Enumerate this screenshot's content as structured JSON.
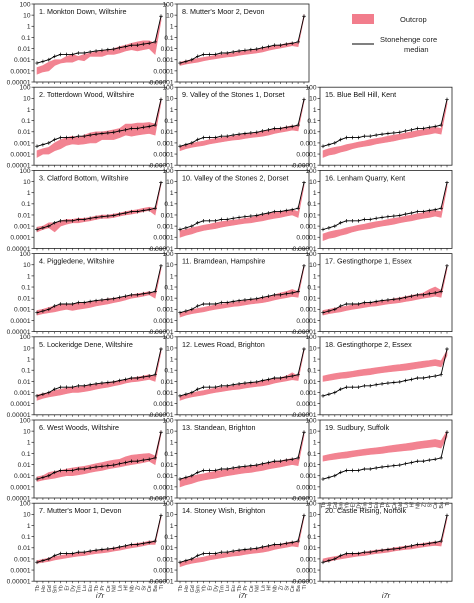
{
  "figure": {
    "legend": {
      "outcrop_label": "Outcrop",
      "median_label_line1": "Stonehenge core",
      "median_label_line2": "median"
    },
    "xlabel": "i7r",
    "colors": {
      "outcrop": "#f27d8c",
      "median": "#000000",
      "frame": "#222222"
    }
  },
  "chart_data": {
    "type": "line",
    "y_scale": "log",
    "ylim": [
      1e-05,
      100
    ],
    "yticks": [
      "100",
      "10",
      "1",
      "0.1",
      "0.01",
      "0.001",
      "0.0001",
      "0.00001"
    ],
    "x_labels": [
      "Tb",
      "Ho",
      "Gd",
      "Sm",
      "Yb",
      "Er",
      "Dy",
      "Tm",
      "Lu",
      "Eu",
      "Tb",
      "Pr",
      "Ce",
      "Nd",
      "La",
      "Hf",
      "Nb",
      "Zr",
      "Sr",
      "Ce",
      "Ba",
      "Ti"
    ],
    "series_median": [
      0.0005,
      0.0007,
      0.001,
      0.002,
      0.003,
      0.003,
      0.003,
      0.004,
      0.004,
      0.005,
      0.006,
      0.007,
      0.008,
      0.009,
      0.012,
      0.015,
      0.02,
      0.02,
      0.025,
      0.03,
      0.04,
      8
    ],
    "panels": [
      {
        "id": 1,
        "title": "1. Monkton Down, Wiltshire",
        "low": [
          5e-05,
          8e-05,
          0.0001,
          0.0003,
          0.0005,
          0.0006,
          0.0006,
          0.001,
          0.0008,
          0.002,
          0.002,
          0.002,
          0.003,
          0.003,
          0.004,
          0.006,
          0.008,
          0.006,
          0.008,
          0.01,
          0.003,
          3
        ],
        "high": [
          0.0002,
          0.0003,
          0.0006,
          0.001,
          0.001,
          0.002,
          0.003,
          0.002,
          0.003,
          0.004,
          0.005,
          0.006,
          0.007,
          0.01,
          0.015,
          0.02,
          0.03,
          0.04,
          0.05,
          0.05,
          0.03,
          8
        ]
      },
      {
        "id": 2,
        "title": "2. Totterdown Wood, Wiltshire",
        "low": [
          5e-05,
          0.0001,
          0.0001,
          0.0002,
          0.0003,
          0.0006,
          0.0008,
          0.0007,
          0.0008,
          0.001,
          0.001,
          0.002,
          0.002,
          0.002,
          0.003,
          0.005,
          0.004,
          0.005,
          0.006,
          0.007,
          0.005,
          4
        ],
        "high": [
          0.0002,
          0.0003,
          0.0004,
          0.001,
          0.002,
          0.003,
          0.004,
          0.003,
          0.005,
          0.008,
          0.01,
          0.01,
          0.012,
          0.015,
          0.02,
          0.05,
          0.05,
          0.06,
          0.06,
          0.07,
          0.05,
          10
        ]
      },
      {
        "id": 3,
        "title": "3. Clatford Bottom, Wiltshire",
        "low": [
          0.0003,
          0.0005,
          0.0007,
          0.0003,
          0.001,
          0.0015,
          0.002,
          0.002,
          0.0025,
          0.003,
          0.004,
          0.005,
          0.005,
          0.006,
          0.008,
          0.01,
          0.012,
          0.015,
          0.02,
          0.025,
          0.01,
          5
        ],
        "high": [
          0.0008,
          0.001,
          0.002,
          0.002,
          0.003,
          0.004,
          0.004,
          0.005,
          0.005,
          0.006,
          0.008,
          0.01,
          0.01,
          0.012,
          0.015,
          0.02,
          0.025,
          0.03,
          0.04,
          0.05,
          0.04,
          10
        ]
      },
      {
        "id": 4,
        "title": "4. Piggledene, Wiltshire",
        "low": [
          0.0003,
          0.0004,
          0.0005,
          0.0006,
          0.0008,
          0.001,
          0.0008,
          0.001,
          0.0012,
          0.0015,
          0.002,
          0.0025,
          0.003,
          0.004,
          0.005,
          0.007,
          0.01,
          0.012,
          0.015,
          0.02,
          0.01,
          4
        ],
        "high": [
          0.0008,
          0.001,
          0.0015,
          0.002,
          0.0025,
          0.003,
          0.003,
          0.004,
          0.004,
          0.005,
          0.006,
          0.007,
          0.009,
          0.01,
          0.012,
          0.015,
          0.02,
          0.025,
          0.03,
          0.04,
          0.03,
          9
        ]
      },
      {
        "id": 5,
        "title": "5. Lockeridge Dene, Wiltshire",
        "low": [
          0.0002,
          0.0003,
          0.0004,
          0.0005,
          0.0006,
          0.0008,
          0.001,
          0.001,
          0.0012,
          0.0015,
          0.002,
          0.0025,
          0.003,
          0.004,
          0.005,
          0.007,
          0.009,
          0.01,
          0.012,
          0.015,
          0.01,
          4
        ],
        "high": [
          0.0006,
          0.0008,
          0.001,
          0.0015,
          0.002,
          0.0025,
          0.003,
          0.003,
          0.004,
          0.005,
          0.006,
          0.007,
          0.008,
          0.01,
          0.012,
          0.015,
          0.02,
          0.025,
          0.03,
          0.04,
          0.03,
          10
        ]
      },
      {
        "id": 6,
        "title": "6. West Woods, Wiltshire",
        "low": [
          0.0003,
          0.0004,
          0.0005,
          0.0006,
          0.0008,
          0.001,
          0.001,
          0.0012,
          0.0015,
          0.002,
          0.0025,
          0.003,
          0.004,
          0.005,
          0.006,
          0.008,
          0.01,
          0.012,
          0.015,
          0.02,
          0.01,
          5
        ],
        "high": [
          0.0008,
          0.001,
          0.002,
          0.0025,
          0.003,
          0.004,
          0.005,
          0.006,
          0.007,
          0.009,
          0.012,
          0.015,
          0.02,
          0.025,
          0.03,
          0.05,
          0.07,
          0.08,
          0.09,
          0.1,
          0.06,
          12
        ]
      },
      {
        "id": 7,
        "title": "7. Mutter's Moor 1, Devon",
        "low": [
          0.0004,
          0.0005,
          0.0006,
          0.0008,
          0.001,
          0.0012,
          0.0015,
          0.0018,
          0.002,
          0.0025,
          0.003,
          0.0035,
          0.004,
          0.005,
          0.006,
          0.008,
          0.01,
          0.012,
          0.015,
          0.02,
          0.02,
          5
        ],
        "high": [
          0.0007,
          0.0009,
          0.0012,
          0.0016,
          0.002,
          0.0025,
          0.003,
          0.0035,
          0.004,
          0.005,
          0.006,
          0.007,
          0.008,
          0.01,
          0.012,
          0.015,
          0.02,
          0.025,
          0.03,
          0.04,
          0.04,
          9
        ]
      },
      {
        "id": 8,
        "title": "8. Mutter's Moor 2, Devon",
        "low": [
          0.0003,
          0.0004,
          0.0005,
          0.0006,
          0.0008,
          0.001,
          0.0012,
          0.0015,
          0.0018,
          0.002,
          0.0025,
          0.003,
          0.0035,
          0.004,
          0.005,
          0.007,
          0.009,
          0.011,
          0.014,
          0.018,
          0.015,
          6
        ],
        "high": [
          0.0006,
          0.0008,
          0.001,
          0.0013,
          0.0016,
          0.002,
          0.0025,
          0.003,
          0.0035,
          0.004,
          0.005,
          0.006,
          0.007,
          0.009,
          0.011,
          0.014,
          0.018,
          0.022,
          0.028,
          0.035,
          0.03,
          12
        ]
      },
      {
        "id": 9,
        "title": "9. Valley of the Stones 1, Dorset",
        "low": [
          0.0002,
          0.0003,
          0.0004,
          0.0005,
          0.0006,
          0.0008,
          0.001,
          0.0012,
          0.0015,
          0.0018,
          0.002,
          0.0025,
          0.003,
          0.0035,
          0.004,
          0.005,
          0.007,
          0.009,
          0.011,
          0.014,
          0.012,
          5
        ],
        "high": [
          0.0005,
          0.0007,
          0.0009,
          0.0012,
          0.0015,
          0.002,
          0.0025,
          0.003,
          0.0035,
          0.004,
          0.005,
          0.006,
          0.007,
          0.009,
          0.011,
          0.014,
          0.018,
          0.022,
          0.028,
          0.035,
          0.03,
          10
        ]
      },
      {
        "id": 10,
        "title": "10. Valley of the Stones 2, Dorset",
        "low": [
          0.0001,
          0.00015,
          0.0002,
          0.0003,
          0.0004,
          0.0005,
          0.0006,
          0.0008,
          0.001,
          0.0012,
          0.0015,
          0.0018,
          0.002,
          0.0025,
          0.003,
          0.004,
          0.005,
          0.006,
          0.008,
          0.01,
          0.006,
          4
        ],
        "high": [
          0.0004,
          0.0005,
          0.0007,
          0.0009,
          0.0012,
          0.0015,
          0.002,
          0.0025,
          0.003,
          0.0035,
          0.004,
          0.005,
          0.006,
          0.008,
          0.01,
          0.013,
          0.017,
          0.02,
          0.025,
          0.03,
          0.02,
          9
        ]
      },
      {
        "id": 11,
        "title": "11. Bramdean, Hampshire",
        "low": [
          0.0002,
          0.0003,
          0.0004,
          0.0005,
          0.0006,
          0.0008,
          0.001,
          0.0012,
          0.0015,
          0.0018,
          0.002,
          0.0025,
          0.003,
          0.0035,
          0.004,
          0.005,
          0.007,
          0.009,
          0.011,
          0.014,
          0.012,
          5
        ],
        "high": [
          0.0005,
          0.0007,
          0.0009,
          0.0012,
          0.0015,
          0.002,
          0.0025,
          0.003,
          0.0035,
          0.004,
          0.005,
          0.006,
          0.007,
          0.009,
          0.011,
          0.014,
          0.02,
          0.03,
          0.04,
          0.06,
          0.04,
          10
        ]
      },
      {
        "id": 12,
        "title": "12. Lewes Road, Brighton",
        "low": [
          0.0002,
          0.0003,
          0.0004,
          0.0005,
          0.0006,
          0.0008,
          0.001,
          0.0012,
          0.0015,
          0.0018,
          0.002,
          0.0025,
          0.003,
          0.0035,
          0.004,
          0.005,
          0.007,
          0.009,
          0.011,
          0.014,
          0.012,
          5
        ],
        "high": [
          0.0005,
          0.0007,
          0.0009,
          0.0012,
          0.0015,
          0.002,
          0.0025,
          0.003,
          0.0035,
          0.004,
          0.005,
          0.006,
          0.007,
          0.009,
          0.011,
          0.014,
          0.018,
          0.022,
          0.03,
          0.06,
          0.03,
          10
        ]
      },
      {
        "id": 13,
        "title": "13. Standean, Brighton",
        "low": [
          0.0001,
          0.00015,
          0.0002,
          0.0003,
          0.0004,
          0.0005,
          0.0006,
          0.0008,
          0.001,
          0.0012,
          0.0015,
          0.0018,
          0.002,
          0.0025,
          0.003,
          0.004,
          0.005,
          0.006,
          0.008,
          0.01,
          0.008,
          4
        ],
        "high": [
          0.0005,
          0.0007,
          0.0009,
          0.0012,
          0.0015,
          0.002,
          0.0025,
          0.003,
          0.0035,
          0.004,
          0.005,
          0.006,
          0.007,
          0.009,
          0.011,
          0.014,
          0.018,
          0.022,
          0.028,
          0.035,
          0.03,
          10
        ]
      },
      {
        "id": 14,
        "title": "14. Stoney Wish, Brighton",
        "low": [
          0.0002,
          0.0003,
          0.0004,
          0.0005,
          0.0006,
          0.0008,
          0.001,
          0.0012,
          0.0015,
          0.0018,
          0.002,
          0.0025,
          0.003,
          0.0035,
          0.004,
          0.005,
          0.007,
          0.009,
          0.011,
          0.014,
          0.012,
          5
        ],
        "high": [
          0.0005,
          0.0007,
          0.0009,
          0.0012,
          0.0015,
          0.002,
          0.0025,
          0.003,
          0.0035,
          0.004,
          0.005,
          0.006,
          0.007,
          0.009,
          0.011,
          0.014,
          0.018,
          0.022,
          0.028,
          0.035,
          0.03,
          10
        ]
      },
      {
        "id": 15,
        "title": "15. Blue Bell Hill, Kent",
        "low": [
          5e-05,
          8e-05,
          0.0001,
          0.00015,
          0.0002,
          0.0003,
          0.0004,
          0.0005,
          0.0006,
          0.0008,
          0.001,
          0.0012,
          0.0015,
          0.002,
          0.0025,
          0.003,
          0.004,
          0.005,
          0.006,
          0.008,
          0.006,
          3
        ],
        "high": [
          0.0002,
          0.0003,
          0.0004,
          0.0005,
          0.0007,
          0.0009,
          0.0012,
          0.0015,
          0.002,
          0.0025,
          0.003,
          0.004,
          0.005,
          0.006,
          0.008,
          0.01,
          0.013,
          0.016,
          0.02,
          0.025,
          0.02,
          8
        ]
      },
      {
        "id": 16,
        "title": "16. Lenham Quarry, Kent",
        "low": [
          5e-05,
          8e-05,
          0.0001,
          0.00015,
          0.0002,
          0.0003,
          0.0004,
          0.0005,
          0.0006,
          0.0008,
          0.001,
          0.0012,
          0.0015,
          0.002,
          0.0025,
          0.003,
          0.004,
          0.005,
          0.006,
          0.008,
          0.006,
          3
        ],
        "high": [
          0.0002,
          0.0003,
          0.0004,
          0.0005,
          0.0007,
          0.0009,
          0.0012,
          0.0015,
          0.002,
          0.0025,
          0.003,
          0.004,
          0.005,
          0.006,
          0.008,
          0.01,
          0.013,
          0.016,
          0.02,
          0.025,
          0.02,
          8
        ]
      },
      {
        "id": 17,
        "title": "17. Gestingthorpe 1, Essex",
        "low": [
          0.0003,
          0.0004,
          0.0005,
          0.0006,
          0.0008,
          0.001,
          0.0012,
          0.0015,
          0.0018,
          0.002,
          0.0025,
          0.003,
          0.0035,
          0.004,
          0.005,
          0.006,
          0.008,
          0.01,
          0.012,
          0.015,
          0.012,
          4
        ],
        "high": [
          0.0008,
          0.001,
          0.0013,
          0.0016,
          0.002,
          0.0025,
          0.003,
          0.0035,
          0.004,
          0.005,
          0.006,
          0.007,
          0.009,
          0.011,
          0.014,
          0.018,
          0.022,
          0.03,
          0.06,
          0.1,
          0.05,
          10
        ]
      },
      {
        "id": 18,
        "title": "18. Gestingthorpe 2, Essex",
        "low": [
          0.01,
          0.012,
          0.015,
          0.018,
          0.02,
          0.025,
          0.03,
          0.035,
          0.04,
          0.05,
          0.06,
          0.07,
          0.08,
          0.09,
          0.1,
          0.12,
          0.15,
          0.18,
          0.22,
          0.26,
          0.2,
          2
        ],
        "high": [
          0.03,
          0.04,
          0.05,
          0.06,
          0.07,
          0.08,
          0.1,
          0.12,
          0.14,
          0.17,
          0.2,
          0.24,
          0.28,
          0.32,
          0.38,
          0.45,
          0.55,
          0.65,
          0.75,
          0.9,
          0.7,
          6
        ]
      },
      {
        "id": 19,
        "title": "19. Sudbury, Suffolk",
        "low": [
          0.02,
          0.025,
          0.03,
          0.035,
          0.04,
          0.05,
          0.06,
          0.07,
          0.08,
          0.09,
          0.1,
          0.12,
          0.14,
          0.16,
          0.18,
          0.2,
          0.25,
          0.3,
          0.35,
          0.4,
          0.3,
          3
        ],
        "high": [
          0.06,
          0.08,
          0.1,
          0.12,
          0.14,
          0.17,
          0.2,
          0.24,
          0.28,
          0.32,
          0.38,
          0.45,
          0.55,
          0.65,
          0.75,
          0.9,
          1.1,
          1.3,
          1.5,
          1.8,
          1.4,
          10
        ]
      },
      {
        "id": 20,
        "title": "20. Castle Rising, Norfolk",
        "low": [
          0.0005,
          0.0006,
          0.0008,
          0.001,
          0.0012,
          0.0015,
          0.0018,
          0.002,
          0.0025,
          0.003,
          0.0035,
          0.004,
          0.005,
          0.006,
          0.007,
          0.008,
          0.01,
          0.012,
          0.014,
          0.016,
          0.014,
          4
        ],
        "high": [
          0.001,
          0.0013,
          0.0016,
          0.002,
          0.0025,
          0.003,
          0.0035,
          0.004,
          0.005,
          0.006,
          0.007,
          0.008,
          0.01,
          0.012,
          0.014,
          0.016,
          0.02,
          0.025,
          0.03,
          0.035,
          0.03,
          9
        ]
      }
    ]
  }
}
